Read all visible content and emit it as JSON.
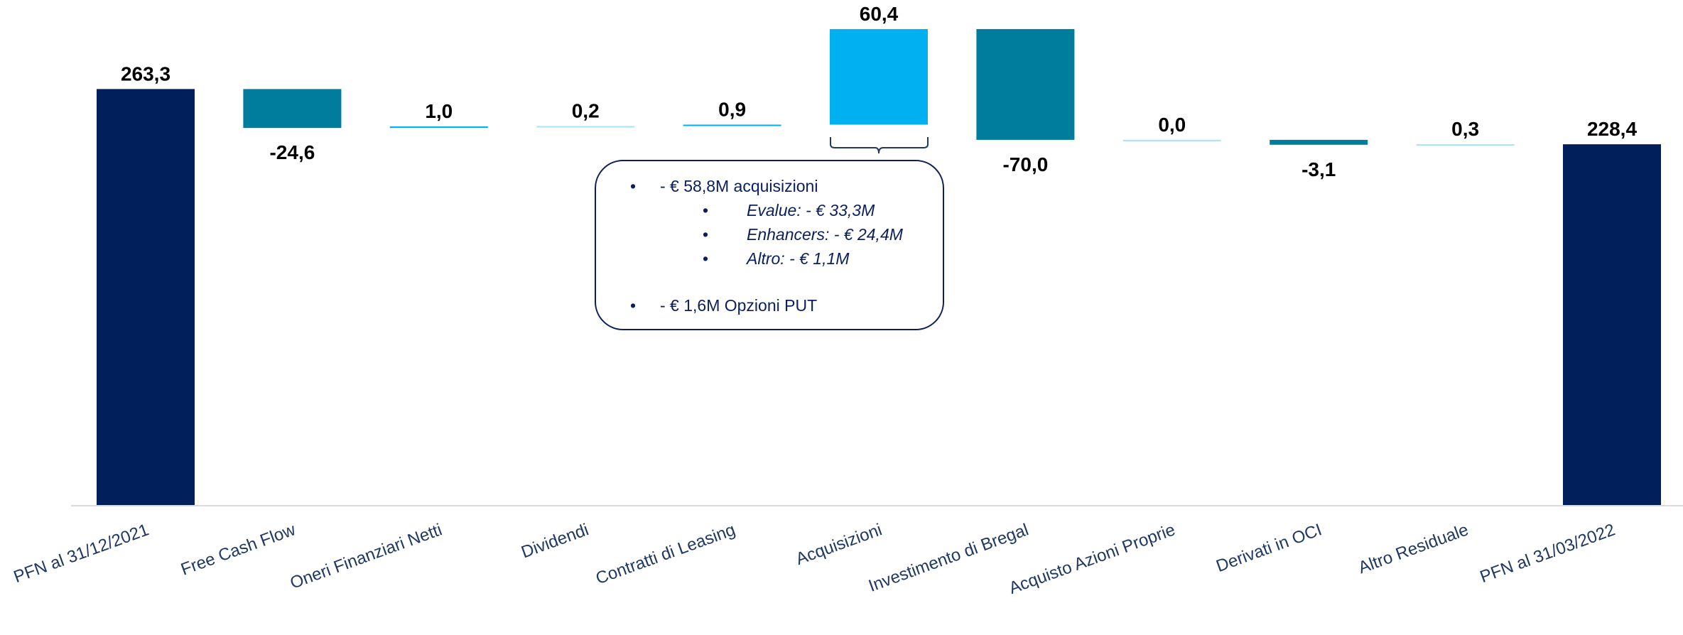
{
  "chart_data": {
    "type": "bar",
    "subtype": "waterfall",
    "categories": [
      "PFN al 31/12/2021",
      "Free Cash Flow",
      "Oneri Finanziari Netti",
      "Dividendi",
      "Contratti di Leasing",
      "Acquisizioni",
      "Investimento di Bregal",
      "Acquisto Azioni Proprie",
      "Derivati in OCI",
      "Altro Residuale",
      "PFN al 31/03/2022"
    ],
    "values": [
      263.3,
      -24.6,
      1.0,
      0.2,
      0.9,
      60.4,
      -70.0,
      0.0,
      -3.1,
      0.3,
      228.4
    ],
    "value_labels": [
      "263,3",
      "-24,6",
      "1,0",
      "0,2",
      "0,9",
      "60,4",
      "-70,0",
      "0,0",
      "-3,1",
      "0,3",
      "228,4"
    ],
    "bar_kinds": [
      "total",
      "negative",
      "positive",
      "positive",
      "positive",
      "positive",
      "negative",
      "positive",
      "negative",
      "positive",
      "total"
    ],
    "colors": {
      "total": "#001f5b",
      "negative": "#007c9c",
      "positive": "#00b0f0",
      "axis": "#d9d9d9",
      "tick_text": "#1f3864",
      "callout_border": "#0a1f5c"
    },
    "ylim": [
      0,
      300
    ],
    "grid": false,
    "legend": "none",
    "title": "",
    "xlabel": "",
    "ylabel": ""
  },
  "callout": {
    "bullet_char": "•",
    "line1": "- € 58,8M acquisizioni",
    "sub1": "Evalue: - € 33,3M",
    "sub2": "Enhancers: - € 24,4M",
    "sub3": "Altro: - € 1,1M",
    "line2": "- € 1,6M Opzioni PUT"
  }
}
